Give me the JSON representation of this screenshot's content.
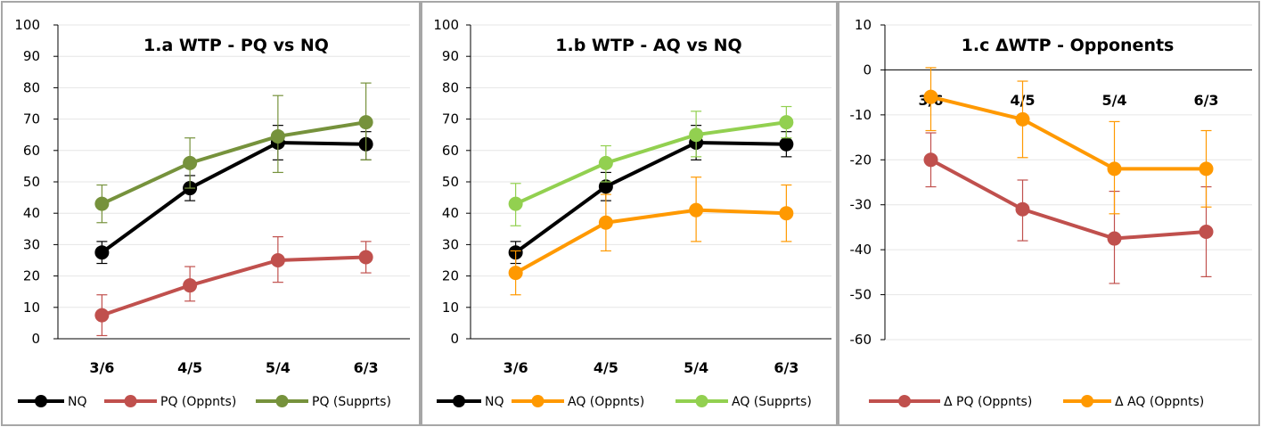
{
  "chart_data": [
    {
      "type": "line",
      "title": "1.a WTP - PQ vs NQ",
      "categories": [
        "3/6",
        "4/5",
        "5/4",
        "6/3"
      ],
      "ylim": [
        0,
        100
      ],
      "yticks": [
        0,
        10,
        20,
        30,
        40,
        50,
        60,
        70,
        80,
        90,
        100
      ],
      "grid": true,
      "legend_position": "bottom",
      "series": [
        {
          "name": "NQ",
          "color": "#000000",
          "values": [
            27.5,
            48,
            62.5,
            62
          ],
          "error": [
            [
              24,
              31
            ],
            [
              44,
              52
            ],
            [
              57,
              68
            ],
            [
              57,
              66
            ]
          ]
        },
        {
          "name": "PQ (Oppnts)",
          "color": "#C0504D",
          "values": [
            7.5,
            17,
            25,
            26
          ],
          "error": [
            [
              1,
              14
            ],
            [
              12,
              23
            ],
            [
              18,
              32.5
            ],
            [
              21,
              31
            ]
          ]
        },
        {
          "name": "PQ (Supprts)",
          "color": "#76923C",
          "values": [
            43,
            56,
            64.5,
            69
          ],
          "error": [
            [
              37,
              49
            ],
            [
              48,
              64
            ],
            [
              53,
              77.5
            ],
            [
              57,
              81.5
            ]
          ]
        }
      ]
    },
    {
      "type": "line",
      "title": "1.b WTP - AQ vs NQ",
      "categories": [
        "3/6",
        "4/5",
        "5/4",
        "6/3"
      ],
      "ylim": [
        0,
        100
      ],
      "yticks": [
        0,
        10,
        20,
        30,
        40,
        50,
        60,
        70,
        80,
        90,
        100
      ],
      "grid": true,
      "legend_position": "bottom",
      "series": [
        {
          "name": "NQ",
          "color": "#000000",
          "values": [
            27.5,
            48.5,
            62.5,
            62
          ],
          "error": [
            [
              24,
              31
            ],
            [
              44,
              53
            ],
            [
              57,
              68
            ],
            [
              58,
              66
            ]
          ]
        },
        {
          "name": "AQ (Oppnts)",
          "color": "#FF9900",
          "values": [
            21,
            37,
            41,
            40
          ],
          "error": [
            [
              14,
              28
            ],
            [
              28,
              46
            ],
            [
              31,
              51.5
            ],
            [
              31,
              49
            ]
          ]
        },
        {
          "name": "AQ (Supprts)",
          "color": "#92D050",
          "values": [
            43,
            56,
            65,
            69
          ],
          "error": [
            [
              36,
              49.5
            ],
            [
              50,
              61.5
            ],
            [
              58,
              72.5
            ],
            [
              64,
              74
            ]
          ]
        }
      ]
    },
    {
      "type": "line",
      "title": "1.c ΔWTP - Opponents",
      "categories": [
        "3/6",
        "4/5",
        "5/4",
        "6/3"
      ],
      "ylim": [
        -60,
        10
      ],
      "yticks": [
        -60,
        -50,
        -40,
        -30,
        -20,
        -10,
        0,
        10
      ],
      "grid": true,
      "legend_position": "bottom",
      "series": [
        {
          "name": "Δ PQ (Oppnts)",
          "color": "#C0504D",
          "values": [
            -20,
            -31,
            -37.5,
            -36
          ],
          "error": [
            [
              -26,
              -14
            ],
            [
              -38,
              -24.5
            ],
            [
              -47.5,
              -27
            ],
            [
              -46,
              -26
            ]
          ]
        },
        {
          "name": "Δ AQ (Oppnts)",
          "color": "#FF9900",
          "values": [
            -6,
            -11,
            -22,
            -22
          ],
          "error": [
            [
              -13.5,
              0.5
            ],
            [
              -19.5,
              -2.5
            ],
            [
              -32,
              -11.5
            ],
            [
              -30.5,
              -13.5
            ]
          ]
        }
      ]
    }
  ]
}
